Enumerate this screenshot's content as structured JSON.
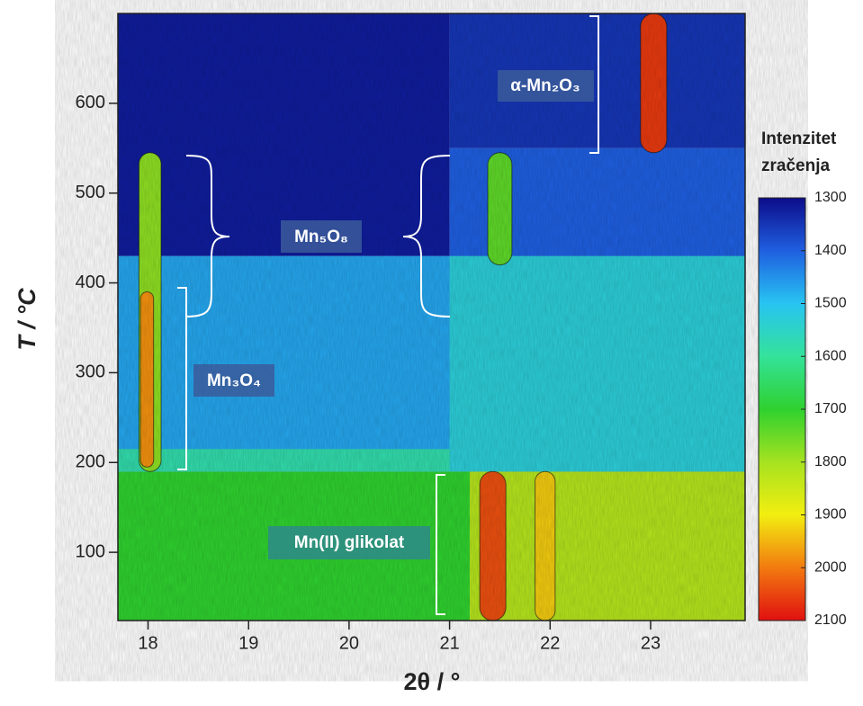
{
  "chart_data": {
    "type": "heatmap",
    "xlabel": "2θ / °",
    "ylabel": "T / °C",
    "xlim": [
      17.7,
      23.94
    ],
    "xticks": [
      18,
      19,
      20,
      21,
      22,
      23
    ],
    "ylim": [
      24,
      700
    ],
    "yticks": [
      100,
      200,
      300,
      400,
      500,
      600
    ],
    "colorbar": {
      "title": [
        "Intenzitet",
        "zračenja"
      ],
      "lim": [
        1300,
        2100
      ],
      "ticks": [
        1300,
        1400,
        1500,
        1600,
        1700,
        1800,
        1900,
        2000,
        2100
      ],
      "colors": [
        "#0c0c8a",
        "#1f5fe0",
        "#28c4f2",
        "#34e29a",
        "#2fd12f",
        "#a6e220",
        "#f2ee10",
        "#f27a10",
        "#e01010"
      ]
    },
    "regions": [
      {
        "x": [
          17.7,
          23.94
        ],
        "y": [
          24,
          190
        ],
        "value": 1700
      },
      {
        "x": [
          21.2,
          23.94
        ],
        "y": [
          24,
          190
        ],
        "value": 1820
      },
      {
        "x": [
          17.7,
          23.94
        ],
        "y": [
          190,
          430
        ],
        "value": 1470
      },
      {
        "x": [
          17.7,
          23.94
        ],
        "y": [
          190,
          215
        ],
        "value": 1580
      },
      {
        "x": [
          21.0,
          23.94
        ],
        "y": [
          190,
          430
        ],
        "value": 1530
      },
      {
        "x": [
          17.7,
          21.0
        ],
        "y": [
          430,
          700
        ],
        "value": 1320
      },
      {
        "x": [
          21.0,
          23.94
        ],
        "y": [
          430,
          550
        ],
        "value": 1400
      },
      {
        "x": [
          21.0,
          23.94
        ],
        "y": [
          550,
          700
        ],
        "value": 1350
      }
    ],
    "peaks": [
      {
        "x": 18.02,
        "width": 0.22,
        "y": [
          190,
          545
        ],
        "value": 1780
      },
      {
        "x": 17.99,
        "width": 0.13,
        "y": [
          195,
          390
        ],
        "value": 1980
      },
      {
        "x": 21.5,
        "width": 0.24,
        "y": [
          420,
          545
        ],
        "value": 1740
      },
      {
        "x": 23.03,
        "width": 0.26,
        "y": [
          545,
          700
        ],
        "value": 2060
      },
      {
        "x": 21.43,
        "width": 0.26,
        "y": [
          24,
          190
        ],
        "value": 2040
      },
      {
        "x": 21.95,
        "width": 0.2,
        "y": [
          24,
          190
        ],
        "value": 1930
      }
    ],
    "annotations": [
      "α-Mn₂O₃",
      "Mn₅O₈",
      "Mn₃O₄",
      "Mn(II) glikolat"
    ]
  }
}
